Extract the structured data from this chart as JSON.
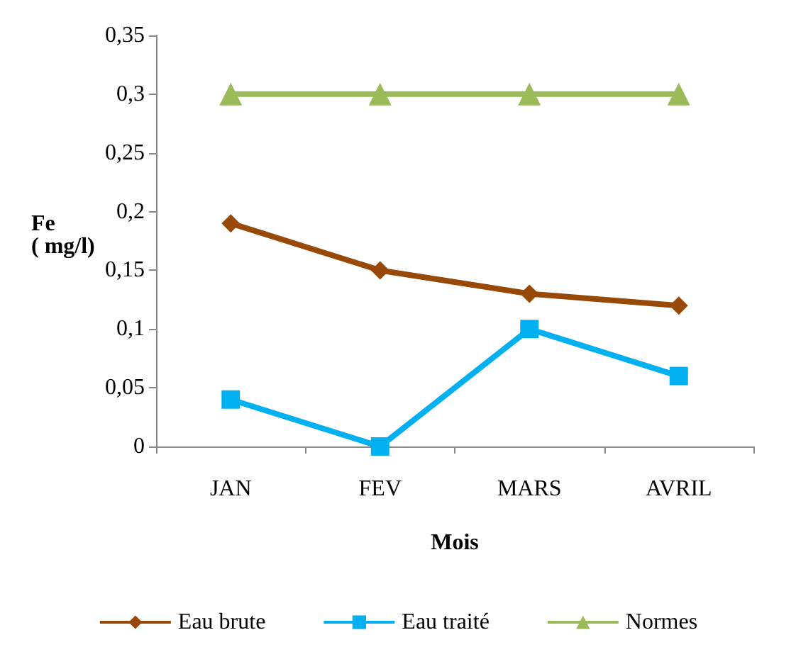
{
  "chart_data": {
    "type": "line",
    "xlabel": "Mois",
    "ylabel": "Fe\n( mg/l)",
    "categories": [
      "JAN",
      "FEV",
      "MARS",
      "AVRIL"
    ],
    "series": [
      {
        "name": "Eau brute",
        "color": "#984807",
        "marker": "diamond",
        "values": [
          0.19,
          0.15,
          0.13,
          0.12
        ]
      },
      {
        "name": "Eau traité",
        "color": "#00b0f0",
        "marker": "square",
        "values": [
          0.04,
          0,
          0.1,
          0.06
        ]
      },
      {
        "name": "Normes",
        "color": "#9bbb59",
        "marker": "triangle",
        "values": [
          0.3,
          0.3,
          0.3,
          0.3
        ]
      }
    ],
    "ylim": [
      0,
      0.35
    ],
    "yticks": [
      {
        "value": 0,
        "label": "0"
      },
      {
        "value": 0.05,
        "label": "0,05"
      },
      {
        "value": 0.1,
        "label": "0,1"
      },
      {
        "value": 0.15,
        "label": "0,15"
      },
      {
        "value": 0.2,
        "label": "0,2"
      },
      {
        "value": 0.25,
        "label": "0,25"
      },
      {
        "value": 0.3,
        "label": "0,3"
      },
      {
        "value": 0.35,
        "label": "0,35"
      }
    ],
    "grid": false,
    "legend": "bottom",
    "line_style": "solid"
  }
}
